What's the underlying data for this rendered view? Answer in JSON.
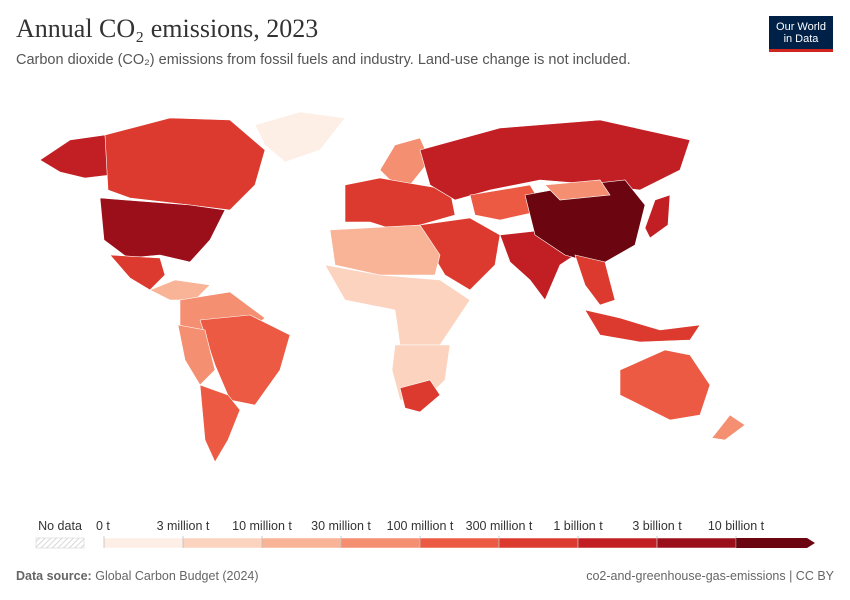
{
  "header": {
    "title": "Annual CO₂ emissions, 2023",
    "subtitle": "Carbon dioxide (CO₂) emissions from fossil fuels and industry. Land-use change is not included.",
    "logo": [
      "Our World",
      "in Data"
    ]
  },
  "legend": {
    "no_data": "No data",
    "ticks": [
      "0 t",
      "3 million t",
      "10 million t",
      "30 million t",
      "100 million t",
      "300 million t",
      "1 billion t",
      "3 billion t",
      "10 billion t"
    ],
    "colors": [
      "#fdeee6",
      "#fbd3bf",
      "#f9b396",
      "#f58f71",
      "#ec5a43",
      "#dc3a2e",
      "#c21f24",
      "#9b0f1a",
      "#6b0610"
    ]
  },
  "footer": {
    "source_label": "Data source:",
    "source": "Global Carbon Budget (2024)",
    "slug": "co2-and-greenhouse-gas-emissions | CC BY"
  }
}
